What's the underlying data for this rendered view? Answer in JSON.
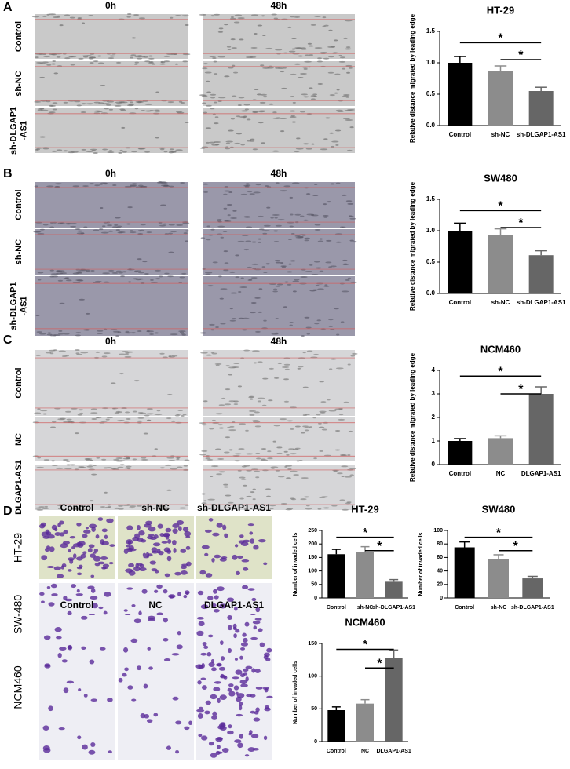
{
  "figure": {
    "panels": [
      {
        "label": "A",
        "column_headers": [
          "0h",
          "48h"
        ],
        "row_labels": [
          "Control",
          "sh-NC",
          [
            "sh-DLGAP1",
            "-AS1"
          ]
        ]
      },
      {
        "label": "B",
        "column_headers": [
          "0h",
          "48h"
        ],
        "row_labels": [
          "Control",
          "sh-NC",
          [
            "sh-DLGAP1",
            "-AS1"
          ]
        ]
      },
      {
        "label": "C",
        "column_headers": [
          "0h",
          "48h"
        ],
        "row_labels": [
          "Control",
          "NC",
          "DLGAP1-AS1"
        ]
      },
      {
        "label": "D",
        "column_headers": [
          "Control",
          "sh-NC",
          "sh-DLGAP1-AS1"
        ],
        "row_labels": [
          "HT-29",
          "SW-480"
        ]
      },
      {
        "column_headers": [
          "Control",
          "NC",
          "DLGAP1-AS1"
        ],
        "row_labels": [
          "NCM460"
        ]
      }
    ]
  },
  "chart_data": [
    {
      "type": "bar",
      "title": "HT-29",
      "y_label": "Relative distance migrated by leading edge",
      "categories": [
        "Control",
        "sh-NC",
        "sh-DLGAP1-AS1"
      ],
      "values": [
        1.0,
        0.87,
        0.55
      ],
      "errors": [
        0.1,
        0.08,
        0.06
      ],
      "colors": [
        "#000000",
        "#8c8c8c",
        "#666666"
      ],
      "ylim": [
        0,
        1.5
      ],
      "yticks": [
        {
          "value": 0,
          "label": "0.0"
        },
        {
          "value": 0.5,
          "label": "0.5"
        },
        {
          "value": 1,
          "label": "1.0"
        },
        {
          "value": 1.5,
          "label": "1.5"
        }
      ],
      "annotations": [
        "*",
        "*"
      ]
    },
    {
      "type": "bar",
      "title": "SW480",
      "y_label": "Relative distance migrated by leading edge",
      "categories": [
        "Control",
        "sh-NC",
        "sh-DLGAP1-AS1"
      ],
      "values": [
        1.0,
        0.93,
        0.61
      ],
      "errors": [
        0.12,
        0.1,
        0.07
      ],
      "colors": [
        "#000000",
        "#8c8c8c",
        "#666666"
      ],
      "ylim": [
        0,
        1.5
      ],
      "yticks": [
        {
          "value": 0,
          "label": "0.0"
        },
        {
          "value": 0.5,
          "label": "0.5"
        },
        {
          "value": 1,
          "label": "1.0"
        },
        {
          "value": 1.5,
          "label": "1.5"
        }
      ],
      "annotations": [
        "*",
        "*"
      ]
    },
    {
      "type": "bar",
      "title": "NCM460",
      "y_label": "Relative distance migrated by leading edge",
      "categories": [
        "Control",
        "NC",
        "DLGAP1-AS1"
      ],
      "values": [
        1.0,
        1.12,
        3.0
      ],
      "errors": [
        0.1,
        0.1,
        0.3
      ],
      "colors": [
        "#000000",
        "#8c8c8c",
        "#666666"
      ],
      "ylim": [
        0,
        4
      ],
      "yticks": [
        0,
        1,
        2,
        3,
        4
      ],
      "annotations": [
        "*",
        "*"
      ]
    },
    {
      "type": "bar",
      "title": "HT-29",
      "y_label": "Number of invaded cells",
      "categories": [
        "Control",
        "sh-NC",
        "sh-DLGAP1-AS1"
      ],
      "values": [
        162,
        170,
        60
      ],
      "errors": [
        18,
        20,
        8
      ],
      "colors": [
        "#000000",
        "#8c8c8c",
        "#666666"
      ],
      "ylim": [
        0,
        250
      ],
      "yticks": [
        0,
        50,
        100,
        150,
        200,
        250
      ],
      "annotations": [
        "*",
        "*"
      ]
    },
    {
      "type": "bar",
      "title": "SW480",
      "y_label": "Number of invaded cells",
      "categories": [
        "Control",
        "sh-NC",
        "sh-DLGAP1-AS1"
      ],
      "values": [
        75,
        57,
        29
      ],
      "errors": [
        8,
        7,
        3
      ],
      "colors": [
        "#000000",
        "#8c8c8c",
        "#666666"
      ],
      "ylim": [
        0,
        100
      ],
      "yticks": [
        0,
        20,
        40,
        60,
        80,
        100
      ],
      "annotations": [
        "*",
        "*"
      ]
    },
    {
      "type": "bar",
      "title": "NCM460",
      "y_label": "Number of invaded cells",
      "categories": [
        "Control",
        "NC",
        "DLGAP1-AS1"
      ],
      "values": [
        48,
        58,
        128
      ],
      "errors": [
        5,
        6,
        12
      ],
      "colors": [
        "#000000",
        "#8c8c8c",
        "#666666"
      ],
      "ylim": [
        0,
        150
      ],
      "yticks": [
        0,
        50,
        100,
        150
      ],
      "annotations": [
        "*",
        "*"
      ]
    }
  ]
}
